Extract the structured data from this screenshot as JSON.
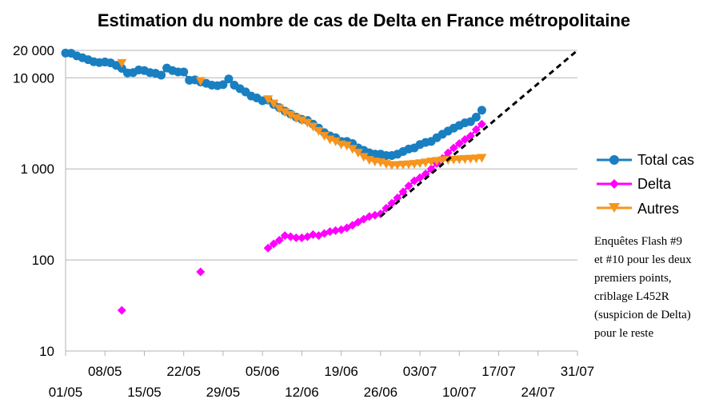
{
  "chart_data": {
    "type": "line",
    "title": "Estimation du nombre de cas de Delta en France métropolitaine",
    "y_scale": "log",
    "ylim": [
      10,
      20000
    ],
    "y_ticks": [
      "10",
      "100",
      "1 000",
      "10 000",
      "20 000"
    ],
    "y_tick_values": [
      10,
      100,
      1000,
      10000,
      20000
    ],
    "xlim": [
      "2021-05-01",
      "2021-07-31"
    ],
    "x_ticks_row1": [
      "08/05",
      "22/05",
      "05/06",
      "19/06",
      "03/07",
      "17/07",
      "31/07"
    ],
    "x_ticks_row1_dates": [
      "2021-05-08",
      "2021-05-22",
      "2021-06-05",
      "2021-06-19",
      "2021-07-03",
      "2021-07-17",
      "2021-07-31"
    ],
    "x_ticks_row2": [
      "01/05",
      "15/05",
      "29/05",
      "12/06",
      "26/06",
      "10/07",
      "24/07"
    ],
    "x_ticks_row2_dates": [
      "2021-05-01",
      "2021-05-15",
      "2021-05-29",
      "2021-06-12",
      "2021-06-26",
      "2021-07-10",
      "2021-07-24"
    ],
    "grid": true,
    "legend_position": "right",
    "series": [
      {
        "name": "Total cas",
        "color": "#1a7fc1",
        "marker": "circle",
        "points": [
          [
            "2021-05-01",
            18700
          ],
          [
            "2021-05-02",
            18600
          ],
          [
            "2021-05-03",
            17400
          ],
          [
            "2021-05-04",
            16600
          ],
          [
            "2021-05-05",
            15800
          ],
          [
            "2021-05-06",
            15000
          ],
          [
            "2021-05-07",
            14700
          ],
          [
            "2021-05-08",
            14900
          ],
          [
            "2021-05-09",
            14600
          ],
          [
            "2021-05-10",
            13700
          ],
          [
            "2021-05-11",
            12700
          ],
          [
            "2021-05-12",
            11300
          ],
          [
            "2021-05-13",
            11400
          ],
          [
            "2021-05-14",
            12200
          ],
          [
            "2021-05-15",
            12000
          ],
          [
            "2021-05-16",
            11400
          ],
          [
            "2021-05-17",
            11200
          ],
          [
            "2021-05-18",
            10700
          ],
          [
            "2021-05-19",
            12800
          ],
          [
            "2021-05-20",
            12000
          ],
          [
            "2021-05-21",
            11600
          ],
          [
            "2021-05-22",
            11600
          ],
          [
            "2021-05-23",
            9400
          ],
          [
            "2021-05-24",
            9500
          ],
          [
            "2021-05-25",
            9000
          ],
          [
            "2021-05-26",
            8700
          ],
          [
            "2021-05-27",
            8300
          ],
          [
            "2021-05-28",
            8200
          ],
          [
            "2021-05-29",
            8400
          ],
          [
            "2021-05-30",
            9700
          ],
          [
            "2021-05-31",
            8300
          ],
          [
            "2021-06-01",
            7600
          ],
          [
            "2021-06-02",
            7000
          ],
          [
            "2021-06-03",
            6300
          ],
          [
            "2021-06-04",
            6000
          ],
          [
            "2021-06-05",
            5600
          ],
          [
            "2021-06-06",
            5700
          ],
          [
            "2021-06-07",
            5100
          ],
          [
            "2021-06-08",
            4700
          ],
          [
            "2021-06-09",
            4300
          ],
          [
            "2021-06-10",
            4000
          ],
          [
            "2021-06-11",
            3700
          ],
          [
            "2021-06-12",
            3500
          ],
          [
            "2021-06-13",
            3400
          ],
          [
            "2021-06-14",
            3100
          ],
          [
            "2021-06-15",
            2800
          ],
          [
            "2021-06-16",
            2500
          ],
          [
            "2021-06-17",
            2300
          ],
          [
            "2021-06-18",
            2200
          ],
          [
            "2021-06-19",
            2000
          ],
          [
            "2021-06-20",
            2000
          ],
          [
            "2021-06-21",
            1900
          ],
          [
            "2021-06-22",
            1700
          ],
          [
            "2021-06-23",
            1600
          ],
          [
            "2021-06-24",
            1500
          ],
          [
            "2021-06-25",
            1450
          ],
          [
            "2021-06-26",
            1450
          ],
          [
            "2021-06-27",
            1400
          ],
          [
            "2021-06-28",
            1400
          ],
          [
            "2021-06-29",
            1450
          ],
          [
            "2021-06-30",
            1550
          ],
          [
            "2021-07-01",
            1650
          ],
          [
            "2021-07-02",
            1700
          ],
          [
            "2021-07-03",
            1850
          ],
          [
            "2021-07-04",
            1950
          ],
          [
            "2021-07-05",
            2000
          ],
          [
            "2021-07-06",
            2200
          ],
          [
            "2021-07-07",
            2400
          ],
          [
            "2021-07-08",
            2600
          ],
          [
            "2021-07-09",
            2800
          ],
          [
            "2021-07-10",
            3000
          ],
          [
            "2021-07-11",
            3200
          ],
          [
            "2021-07-12",
            3300
          ],
          [
            "2021-07-13",
            3700
          ],
          [
            "2021-07-14",
            4400
          ]
        ]
      },
      {
        "name": "Delta",
        "color": "#ff00ff",
        "marker": "diamond",
        "points": [
          [
            "2021-05-11",
            28
          ],
          [
            "2021-05-25",
            74
          ],
          [
            "2021-06-06",
            135
          ],
          [
            "2021-06-07",
            150
          ],
          [
            "2021-06-08",
            165
          ],
          [
            "2021-06-09",
            185
          ],
          [
            "2021-06-10",
            180
          ],
          [
            "2021-06-11",
            175
          ],
          [
            "2021-06-12",
            175
          ],
          [
            "2021-06-13",
            180
          ],
          [
            "2021-06-14",
            190
          ],
          [
            "2021-06-15",
            185
          ],
          [
            "2021-06-16",
            195
          ],
          [
            "2021-06-17",
            205
          ],
          [
            "2021-06-18",
            210
          ],
          [
            "2021-06-19",
            215
          ],
          [
            "2021-06-20",
            225
          ],
          [
            "2021-06-21",
            240
          ],
          [
            "2021-06-22",
            260
          ],
          [
            "2021-06-23",
            280
          ],
          [
            "2021-06-24",
            300
          ],
          [
            "2021-06-25",
            310
          ],
          [
            "2021-06-26",
            320
          ],
          [
            "2021-06-27",
            370
          ],
          [
            "2021-06-28",
            420
          ],
          [
            "2021-06-29",
            480
          ],
          [
            "2021-06-30",
            560
          ],
          [
            "2021-07-01",
            650
          ],
          [
            "2021-07-02",
            740
          ],
          [
            "2021-07-03",
            800
          ],
          [
            "2021-07-04",
            880
          ],
          [
            "2021-07-05",
            1000
          ],
          [
            "2021-07-06",
            1150
          ],
          [
            "2021-07-07",
            1300
          ],
          [
            "2021-07-08",
            1500
          ],
          [
            "2021-07-09",
            1700
          ],
          [
            "2021-07-10",
            1900
          ],
          [
            "2021-07-11",
            2100
          ],
          [
            "2021-07-12",
            2300
          ],
          [
            "2021-07-13",
            2700
          ],
          [
            "2021-07-14",
            3100
          ]
        ]
      },
      {
        "name": "Autres",
        "color": "#f7941d",
        "marker": "triangle-down",
        "points": [
          [
            "2021-05-11",
            14500
          ],
          [
            "2021-05-25",
            9200
          ],
          [
            "2021-06-06",
            5800
          ],
          [
            "2021-06-07",
            5200
          ],
          [
            "2021-06-08",
            4600
          ],
          [
            "2021-06-09",
            4200
          ],
          [
            "2021-06-10",
            3900
          ],
          [
            "2021-06-11",
            3600
          ],
          [
            "2021-06-12",
            3400
          ],
          [
            "2021-06-13",
            3200
          ],
          [
            "2021-06-14",
            2900
          ],
          [
            "2021-06-15",
            2600
          ],
          [
            "2021-06-16",
            2300
          ],
          [
            "2021-06-17",
            2100
          ],
          [
            "2021-06-18",
            2000
          ],
          [
            "2021-06-19",
            1850
          ],
          [
            "2021-06-20",
            1800
          ],
          [
            "2021-06-21",
            1650
          ],
          [
            "2021-06-22",
            1500
          ],
          [
            "2021-06-23",
            1350
          ],
          [
            "2021-06-24",
            1250
          ],
          [
            "2021-06-25",
            1200
          ],
          [
            "2021-06-26",
            1180
          ],
          [
            "2021-06-27",
            1130
          ],
          [
            "2021-06-28",
            1100
          ],
          [
            "2021-06-29",
            1100
          ],
          [
            "2021-06-30",
            1110
          ],
          [
            "2021-07-01",
            1120
          ],
          [
            "2021-07-02",
            1130
          ],
          [
            "2021-07-03",
            1150
          ],
          [
            "2021-07-04",
            1170
          ],
          [
            "2021-07-05",
            1200
          ],
          [
            "2021-07-06",
            1220
          ],
          [
            "2021-07-07",
            1240
          ],
          [
            "2021-07-08",
            1250
          ],
          [
            "2021-07-09",
            1260
          ],
          [
            "2021-07-10",
            1270
          ],
          [
            "2021-07-11",
            1280
          ],
          [
            "2021-07-12",
            1290
          ],
          [
            "2021-07-13",
            1300
          ],
          [
            "2021-07-14",
            1320
          ]
        ]
      }
    ],
    "trendline": {
      "color": "#000000",
      "style": "dashed",
      "points": [
        [
          "2021-06-26",
          300
        ],
        [
          "2021-07-31",
          20000
        ]
      ]
    },
    "annotation_lines": [
      "Enquêtes Flash #9",
      "et #10 pour les deux",
      "premiers points,",
      "criblage L452R",
      "(suspicion de Delta)",
      "pour le reste"
    ]
  }
}
